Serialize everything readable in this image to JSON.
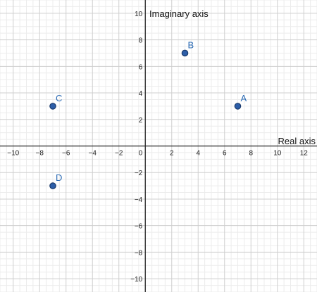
{
  "chart_data": {
    "type": "scatter",
    "xlabel": "Real axis",
    "ylabel": "Imaginary axis",
    "xlim": [
      -11,
      13
    ],
    "ylim": [
      -11,
      11
    ],
    "x_ticks": [
      -10,
      -8,
      -6,
      -4,
      -2,
      2,
      4,
      6,
      8,
      10,
      12
    ],
    "y_ticks": [
      -10,
      -8,
      -6,
      -4,
      -2,
      2,
      4,
      6,
      8,
      10
    ],
    "origin_label": "0",
    "grid": true,
    "points": [
      {
        "label": "A",
        "x": 7,
        "y": 3
      },
      {
        "label": "B",
        "x": 3,
        "y": 7
      },
      {
        "label": "C",
        "x": -7,
        "y": 3
      },
      {
        "label": "D",
        "x": -7,
        "y": -3
      }
    ],
    "colors": {
      "point_fill": "#2d5ea8",
      "point_stroke": "#1a3a6b",
      "label": "#2d6cb5",
      "grid_minor": "#ececec",
      "grid_major": "#cfcfcf",
      "axis": "#222222"
    }
  }
}
